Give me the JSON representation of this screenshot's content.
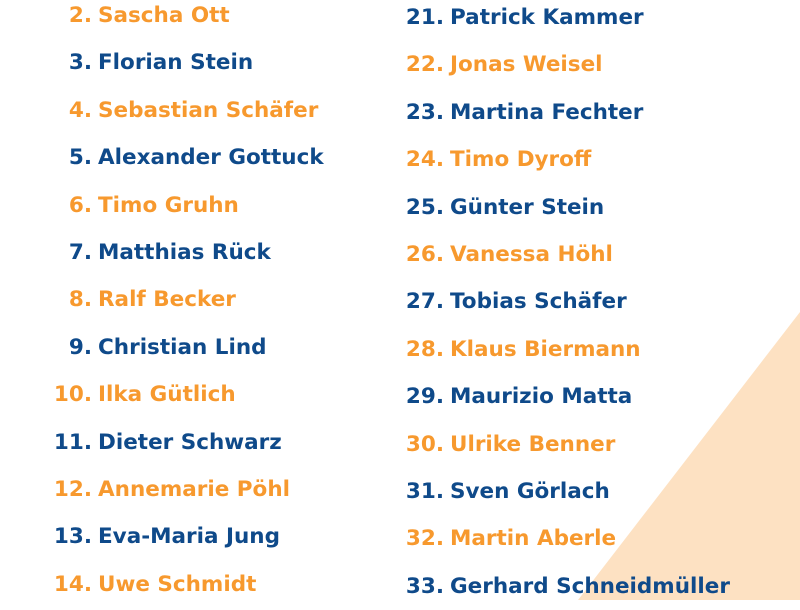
{
  "colors": {
    "orange": "#f7992e",
    "blue": "#0f4a8a",
    "background_triangle": "#fde1c2"
  },
  "left_column": [
    {
      "number": "2.",
      "name": "Sascha Ott",
      "color": "orange"
    },
    {
      "number": "3.",
      "name": "Florian Stein",
      "color": "blue"
    },
    {
      "number": "4.",
      "name": "Sebastian Schäfer",
      "color": "orange"
    },
    {
      "number": "5.",
      "name": "Alexander Gottuck",
      "color": "blue"
    },
    {
      "number": "6.",
      "name": "Timo Gruhn",
      "color": "orange"
    },
    {
      "number": "7.",
      "name": "Matthias Rück",
      "color": "blue"
    },
    {
      "number": "8.",
      "name": "Ralf Becker",
      "color": "orange"
    },
    {
      "number": "9.",
      "name": "Christian Lind",
      "color": "blue"
    },
    {
      "number": "10.",
      "name": "Ilka Gütlich",
      "color": "orange"
    },
    {
      "number": "11.",
      "name": "Dieter Schwarz",
      "color": "blue"
    },
    {
      "number": "12.",
      "name": "Annemarie Pöhl",
      "color": "orange"
    },
    {
      "number": "13.",
      "name": "Eva-Maria Jung",
      "color": "blue"
    },
    {
      "number": "14.",
      "name": "Uwe Schmidt",
      "color": "orange"
    }
  ],
  "right_column": [
    {
      "number": "21.",
      "name": "Patrick Kammer",
      "color": "blue"
    },
    {
      "number": "22.",
      "name": "Jonas Weisel",
      "color": "orange"
    },
    {
      "number": "23.",
      "name": "Martina Fechter",
      "color": "blue"
    },
    {
      "number": "24.",
      "name": "Timo Dyroff",
      "color": "orange"
    },
    {
      "number": "25.",
      "name": "Günter Stein",
      "color": "blue"
    },
    {
      "number": "26.",
      "name": "Vanessa Höhl",
      "color": "orange"
    },
    {
      "number": "27.",
      "name": "Tobias Schäfer",
      "color": "blue"
    },
    {
      "number": "28.",
      "name": "Klaus Biermann",
      "color": "orange"
    },
    {
      "number": "29.",
      "name": "Maurizio Matta",
      "color": "blue"
    },
    {
      "number": "30.",
      "name": "Ulrike Benner",
      "color": "orange"
    },
    {
      "number": "31.",
      "name": "Sven Görlach",
      "color": "blue"
    },
    {
      "number": "32.",
      "name": "Martin Aberle",
      "color": "orange"
    },
    {
      "number": "33.",
      "name": "Gerhard Schneidmüller",
      "color": "blue"
    }
  ]
}
